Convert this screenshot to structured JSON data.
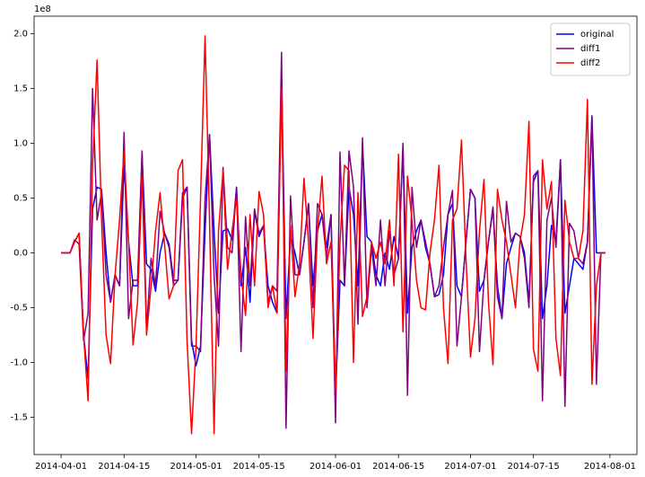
{
  "chart_data": {
    "type": "line",
    "offset_label": "1e8",
    "x": [
      "2014-04-01",
      "2014-04-02",
      "2014-04-03",
      "2014-04-04",
      "2014-04-05",
      "2014-04-06",
      "2014-04-07",
      "2014-04-08",
      "2014-04-09",
      "2014-04-10",
      "2014-04-11",
      "2014-04-12",
      "2014-04-13",
      "2014-04-14",
      "2014-04-15",
      "2014-04-16",
      "2014-04-17",
      "2014-04-18",
      "2014-04-19",
      "2014-04-20",
      "2014-04-21",
      "2014-04-22",
      "2014-04-23",
      "2014-04-24",
      "2014-04-25",
      "2014-04-26",
      "2014-04-27",
      "2014-04-28",
      "2014-04-29",
      "2014-04-30",
      "2014-05-01",
      "2014-05-02",
      "2014-05-03",
      "2014-05-04",
      "2014-05-05",
      "2014-05-06",
      "2014-05-07",
      "2014-05-08",
      "2014-05-09",
      "2014-05-10",
      "2014-05-11",
      "2014-05-12",
      "2014-05-13",
      "2014-05-14",
      "2014-05-15",
      "2014-05-16",
      "2014-05-17",
      "2014-05-18",
      "2014-05-19",
      "2014-05-20",
      "2014-05-21",
      "2014-05-22",
      "2014-05-23",
      "2014-05-24",
      "2014-05-25",
      "2014-05-26",
      "2014-05-27",
      "2014-05-28",
      "2014-05-29",
      "2014-05-30",
      "2014-05-31",
      "2014-06-01",
      "2014-06-02",
      "2014-06-03",
      "2014-06-04",
      "2014-06-05",
      "2014-06-06",
      "2014-06-07",
      "2014-06-08",
      "2014-06-09",
      "2014-06-10",
      "2014-06-11",
      "2014-06-12",
      "2014-06-13",
      "2014-06-14",
      "2014-06-15",
      "2014-06-16",
      "2014-06-17",
      "2014-06-18",
      "2014-06-19",
      "2014-06-20",
      "2014-06-21",
      "2014-06-22",
      "2014-06-23",
      "2014-06-24",
      "2014-06-25",
      "2014-06-26",
      "2014-06-27",
      "2014-06-28",
      "2014-06-29",
      "2014-06-30",
      "2014-07-01",
      "2014-07-02",
      "2014-07-03",
      "2014-07-04",
      "2014-07-05",
      "2014-07-06",
      "2014-07-07",
      "2014-07-08",
      "2014-07-09",
      "2014-07-10",
      "2014-07-11",
      "2014-07-12",
      "2014-07-13",
      "2014-07-14",
      "2014-07-15",
      "2014-07-16",
      "2014-07-17",
      "2014-07-18",
      "2014-07-19",
      "2014-07-20",
      "2014-07-21",
      "2014-07-22",
      "2014-07-23",
      "2014-07-24",
      "2014-07-25",
      "2014-07-26",
      "2014-07-27",
      "2014-07-28",
      "2014-07-29",
      "2014-07-30",
      "2014-07-31"
    ],
    "series": [
      {
        "name": "original",
        "color": "#0000ff",
        "values": [
          0,
          0,
          0,
          0.1,
          0.18,
          -0.75,
          -1.15,
          0.4,
          0.6,
          0.58,
          0,
          -0.45,
          -0.2,
          -0.3,
          0.8,
          0.1,
          -0.3,
          -0.3,
          0.9,
          -0.1,
          -0.15,
          -0.35,
          0,
          0.18,
          0.08,
          -0.25,
          -0.25,
          0.5,
          0.6,
          -0.8,
          -1.03,
          -0.85,
          0.2,
          1.08,
          0.2,
          -0.55,
          0.2,
          0.22,
          0.12,
          0.6,
          -0.3,
          0.05,
          -0.45,
          0.38,
          0.15,
          0.25,
          -0.3,
          -0.45,
          -0.55,
          1.6,
          -0.6,
          0.15,
          0,
          -0.2,
          0.1,
          0.45,
          -0.3,
          0.2,
          0.35,
          0.05,
          0.35,
          -1.3,
          -0.25,
          -0.3,
          0.6,
          0.35,
          -0.3,
          1.0,
          0.15,
          0.1,
          -0.2,
          -0.3,
          0,
          -0.15,
          0.15,
          -0.05,
          0.95,
          -0.55,
          0.05,
          0.2,
          0.3,
          0.05,
          -0.1,
          -0.4,
          -0.38,
          -0.2,
          0.35,
          0.45,
          -0.3,
          -0.4,
          0.1,
          0.58,
          0.5,
          -0.35,
          -0.25,
          0.1,
          0.4,
          -0.3,
          -0.6,
          -0.1,
          0.05,
          0.18,
          0.15,
          0,
          -0.45,
          0.65,
          0.75,
          -0.6,
          -0.3,
          0.25,
          0.1,
          0.85,
          -0.55,
          -0.3,
          -0.05,
          -0.1,
          -0.15,
          0.1,
          1.25,
          0,
          0,
          0
        ]
      },
      {
        "name": "diff1",
        "color": "#800080",
        "values": [
          0,
          0,
          0,
          0.12,
          0.08,
          -0.8,
          -0.55,
          1.5,
          0.3,
          0.55,
          -0.2,
          -0.45,
          -0.2,
          -0.3,
          1.1,
          -0.6,
          -0.25,
          -0.25,
          0.93,
          -0.7,
          -0.05,
          -0.3,
          0.38,
          0.18,
          0.05,
          -0.3,
          -0.25,
          0.55,
          0.6,
          -0.85,
          -0.85,
          -0.9,
          0.5,
          1.08,
          -0.2,
          -0.85,
          0.78,
          0.05,
          0,
          0.6,
          -0.9,
          0.33,
          -0.3,
          0.4,
          0.18,
          0.25,
          -0.45,
          -0.3,
          -0.35,
          1.83,
          -1.6,
          0.52,
          -0.2,
          -0.2,
          0.1,
          0.45,
          -0.5,
          0.45,
          0.35,
          -0.05,
          0.35,
          -1.55,
          0.92,
          -0.3,
          0.93,
          0.6,
          -0.65,
          1.05,
          -0.5,
          0.05,
          -0.3,
          0.3,
          -0.3,
          0.2,
          -0.2,
          -0.05,
          1.0,
          -1.3,
          0.6,
          0.05,
          0.3,
          0.1,
          -0.1,
          -0.4,
          -0.3,
          0.05,
          0.35,
          0.57,
          -0.85,
          -0.4,
          0.1,
          0.58,
          0.5,
          -0.9,
          -0.25,
          0.1,
          0.42,
          -0.4,
          -0.6,
          0.47,
          0.1,
          0.18,
          0.15,
          -0.05,
          -0.5,
          0.7,
          0.75,
          -1.35,
          0.3,
          0.5,
          0.05,
          0.85,
          -1.4,
          0.27,
          0.2,
          -0.05,
          -0.1,
          0.1,
          1.25,
          -1.2,
          0,
          0
        ]
      },
      {
        "name": "diff2",
        "color": "#ff0000",
        "values": [
          0,
          0,
          0,
          0.1,
          0.18,
          -0.75,
          -1.35,
          0.8,
          1.76,
          0.3,
          -0.75,
          -1.01,
          -0.2,
          0.3,
          0.93,
          0.1,
          -0.84,
          -0.45,
          0.7,
          -0.75,
          -0.3,
          0.2,
          0.55,
          0.08,
          -0.42,
          -0.3,
          0.75,
          0.85,
          -0.8,
          -1.65,
          -0.85,
          0.5,
          1.98,
          0.3,
          -1.65,
          0.2,
          0.75,
          -0.15,
          0.2,
          0.5,
          -0.2,
          -0.57,
          0.35,
          -0.3,
          0.56,
          0.35,
          -0.5,
          -0.3,
          -0.55,
          1.5,
          -1.08,
          0.25,
          -0.4,
          -0.1,
          0.68,
          0.1,
          -0.78,
          0.2,
          0.7,
          -0.1,
          0.1,
          -1.25,
          0.1,
          0.8,
          0.75,
          -1.0,
          0.55,
          -0.58,
          -0.4,
          0.1,
          -0.05,
          0.1,
          -0.1,
          0.3,
          -0.3,
          0.9,
          -0.72,
          0.7,
          0.3,
          -0.25,
          -0.5,
          -0.52,
          0,
          0.3,
          0.8,
          -0.5,
          -1.01,
          0.3,
          0.4,
          1.03,
          -0.05,
          -0.95,
          -0.6,
          0.2,
          0.67,
          -0.45,
          -1.02,
          0.58,
          0.3,
          0.1,
          -0.2,
          -0.5,
          0.1,
          0.35,
          1.2,
          -0.88,
          -1.08,
          0.85,
          0.4,
          0.65,
          -0.78,
          -1.12,
          0.48,
          0.1,
          -0.05,
          -0.05,
          0.2,
          1.4,
          -1.2,
          -0.3,
          0,
          0
        ]
      }
    ],
    "xlim": [
      "2014-03-26",
      "2014-08-07"
    ],
    "xticks": [
      "2014-04-01",
      "2014-04-15",
      "2014-05-01",
      "2014-05-15",
      "2014-06-01",
      "2014-06-15",
      "2014-07-01",
      "2014-07-15",
      "2014-08-01"
    ],
    "ylim": [
      -1.84,
      2.16
    ],
    "yticks": [
      -1.5,
      {
        "value": -1,
        "label": "-1.0"
      },
      -0.5,
      {
        "value": 0,
        "label": "0.0"
      },
      0.5,
      {
        "value": 1,
        "label": "1.0"
      },
      1.5,
      {
        "value": 2,
        "label": "2.0"
      }
    ],
    "legend": "upper right"
  }
}
